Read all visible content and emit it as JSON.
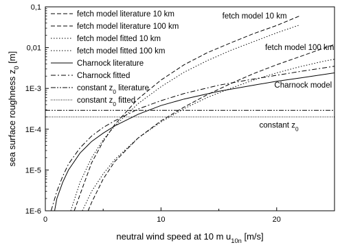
{
  "chart_data": {
    "type": "line",
    "xlabel": {
      "main": "neutral wind speed at 10 m u",
      "sub": "10n",
      "unit": " [m/s]"
    },
    "ylabel": {
      "main": "sea surface roughness z",
      "sub": "0",
      "unit": " [m]"
    },
    "xlim": [
      0,
      25
    ],
    "ylim": [
      1e-06,
      0.1
    ],
    "yscale": "log",
    "grid": false,
    "legend_position": "top-left",
    "x_ticks": [
      0,
      10,
      20
    ],
    "y_ticks": [
      {
        "value": 0.1,
        "label": "0,1"
      },
      {
        "value": 0.01,
        "label": "0,01"
      },
      {
        "value": 0.001,
        "label": "1E-3"
      },
      {
        "value": 0.0001,
        "label": "1E-4"
      },
      {
        "value": 1e-05,
        "label": "1E-5"
      },
      {
        "value": 1e-06,
        "label": "1E-6"
      }
    ],
    "series": [
      {
        "name": "fetch model literature 10 km",
        "dash": "6,3",
        "x": [
          2.5,
          3,
          4,
          5,
          6,
          8,
          10,
          12,
          14,
          16,
          18,
          20,
          22
        ],
        "y": [
          1e-06,
          2.5e-06,
          1.5e-05,
          5e-05,
          0.00013,
          0.00055,
          0.0016,
          0.0038,
          0.0075,
          0.013,
          0.022,
          0.035,
          0.06
        ]
      },
      {
        "name": "fetch model literature 100 km",
        "dash": "6,3",
        "x": [
          3.7,
          4,
          5,
          6,
          8,
          10,
          12,
          14,
          16,
          18,
          20,
          22,
          24,
          25
        ],
        "y": [
          1e-06,
          1.6e-06,
          6e-06,
          1.6e-05,
          6e-05,
          0.00016,
          0.00035,
          0.0007,
          0.0013,
          0.0023,
          0.0038,
          0.006,
          0.0095,
          0.012
        ]
      },
      {
        "name": "fetch model fitted 10 km",
        "dash": "1.5,2.5",
        "x": [
          2.2,
          3,
          4,
          5,
          6,
          8,
          10,
          12,
          14,
          16,
          18,
          20,
          22
        ],
        "y": [
          1e-06,
          5e-06,
          2e-05,
          5.5e-05,
          0.00012,
          0.00042,
          0.0011,
          0.0025,
          0.0048,
          0.0085,
          0.014,
          0.023,
          0.036
        ]
      },
      {
        "name": "fetch model fitted 100 km",
        "dash": "1.5,2.5",
        "x": [
          3.2,
          4,
          5,
          6,
          8,
          10,
          12,
          14,
          16,
          18,
          20,
          22,
          24,
          25
        ],
        "y": [
          1e-06,
          3e-06,
          8e-06,
          1.8e-05,
          6e-05,
          0.00015,
          0.00032,
          0.0006,
          0.001,
          0.0016,
          0.0024,
          0.0034,
          0.0046,
          0.0052
        ]
      },
      {
        "name": "Charnock literature",
        "dash": "",
        "x": [
          0.8,
          1,
          1.5,
          2,
          3,
          4,
          5,
          6,
          8,
          10,
          12,
          15,
          18,
          20,
          22,
          25
        ],
        "y": [
          1e-06,
          2e-06,
          5e-06,
          1e-05,
          2.6e-05,
          5e-05,
          8e-05,
          0.00012,
          0.00023,
          0.00038,
          0.00055,
          0.00085,
          0.0012,
          0.0015,
          0.0018,
          0.0024
        ]
      },
      {
        "name": "Charnock fitted",
        "dash": "7,3,2,3",
        "x": [
          0.5,
          1,
          1.5,
          2,
          3,
          4,
          5,
          6,
          8,
          10,
          12,
          15,
          18,
          20,
          22,
          25
        ],
        "y": [
          1e-06,
          3e-06,
          7e-06,
          1.4e-05,
          3.5e-05,
          6.8e-05,
          0.00011,
          0.00016,
          0.00031,
          0.0005,
          0.00075,
          0.0012,
          0.0017,
          0.0021,
          0.0026,
          0.0035
        ]
      },
      {
        "name": "constant z0 literature",
        "sub": "0",
        "prefix": "constant z",
        "suffix": " literature",
        "dash": "7,2,2,2,2,2",
        "x": [
          0,
          25
        ],
        "y": [
          0.00029,
          0.00029
        ]
      },
      {
        "name": "constant z0 fitted",
        "sub": "0",
        "prefix": "constant z",
        "suffix": " fitted",
        "dash": "1,1.5",
        "x": [
          0,
          25
        ],
        "y": [
          0.0002,
          0.0002
        ]
      }
    ],
    "annotations": [
      {
        "text": "fetch model 10 km",
        "x": 15.3,
        "y": 0.052
      },
      {
        "text": "fetch model 100 km",
        "x": 19,
        "y": 0.0088
      },
      {
        "text": "Charnock model",
        "x": 19.8,
        "y": 0.00105
      },
      {
        "text": "constant z",
        "sub": "0",
        "x": 18.5,
        "y": 0.00011
      }
    ]
  }
}
